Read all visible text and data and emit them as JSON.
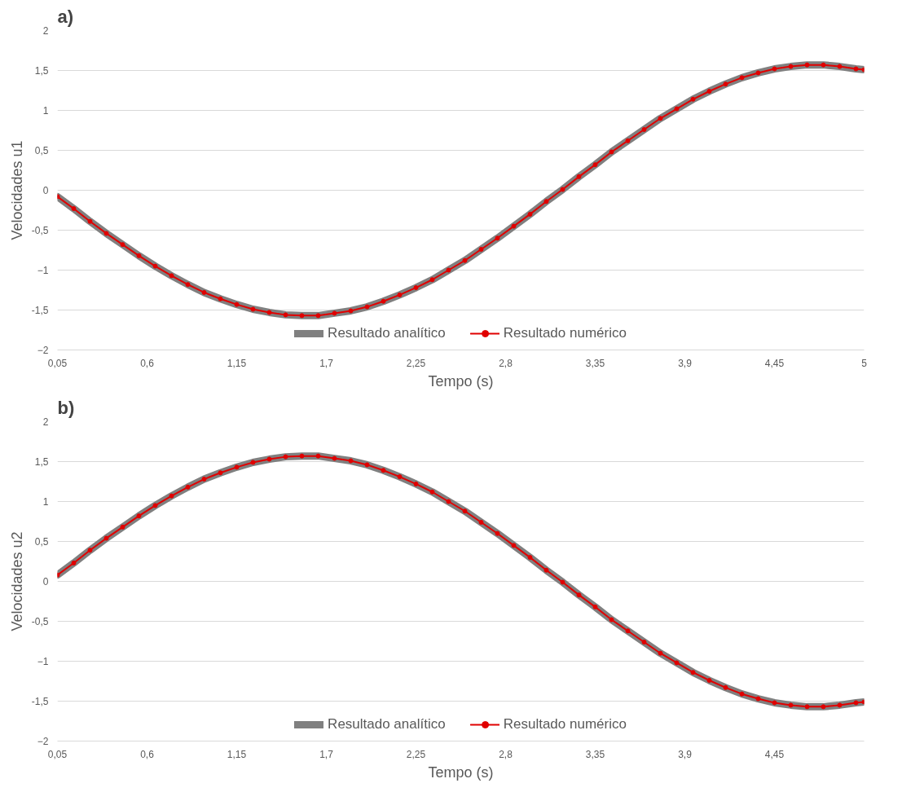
{
  "chart_data": [
    {
      "type": "line",
      "title": "a)",
      "xlabel": "Tempo (s)",
      "ylabel": "Velocidades u1",
      "grid": "y",
      "legend": "bottom",
      "xlim": [
        0.05,
        5
      ],
      "xticks": [
        {
          "value": 0.05,
          "label": "0,05"
        },
        {
          "value": 0.6,
          "label": "0,6"
        },
        {
          "value": 1.15,
          "label": "1,15"
        },
        {
          "value": 1.7,
          "label": "1,7"
        },
        {
          "value": 2.25,
          "label": "2,25"
        },
        {
          "value": 2.8,
          "label": "2,8"
        },
        {
          "value": 3.35,
          "label": "3,35"
        },
        {
          "value": 3.9,
          "label": "3,9"
        },
        {
          "value": 4.45,
          "label": "4,45"
        },
        5
      ],
      "ylim": [
        -2,
        2
      ],
      "yticks": [
        -2,
        {
          "value": -1.5,
          "label": "-1,5"
        },
        -1,
        {
          "value": -0.5,
          "label": "-0,5"
        },
        0,
        {
          "value": 0.5,
          "label": "0,5"
        },
        1,
        {
          "value": 1.5,
          "label": "1,5"
        },
        2
      ],
      "x": [
        0.05,
        0.15,
        0.25,
        0.35,
        0.45,
        0.55,
        0.65,
        0.75,
        0.85,
        0.95,
        1.05,
        1.15,
        1.25,
        1.35,
        1.45,
        1.55,
        1.65,
        1.75,
        1.85,
        1.95,
        2.05,
        2.15,
        2.25,
        2.35,
        2.45,
        2.55,
        2.65,
        2.75,
        2.85,
        2.95,
        3.05,
        3.15,
        3.25,
        3.35,
        3.45,
        3.55,
        3.65,
        3.75,
        3.85,
        3.95,
        4.05,
        4.15,
        4.25,
        4.35,
        4.45,
        4.55,
        4.65,
        4.75,
        4.85,
        4.95,
        5.0
      ],
      "series": [
        {
          "name": "Resultado analítico",
          "color": "#808080",
          "marker": "none",
          "values": [
            -0.08,
            -0.23,
            -0.39,
            -0.54,
            -0.68,
            -0.82,
            -0.95,
            -1.07,
            -1.18,
            -1.28,
            -1.36,
            -1.43,
            -1.49,
            -1.53,
            -1.56,
            -1.57,
            -1.57,
            -1.54,
            -1.51,
            -1.46,
            -1.39,
            -1.31,
            -1.22,
            -1.12,
            -1.0,
            -0.88,
            -0.74,
            -0.6,
            -0.45,
            -0.3,
            -0.14,
            0.01,
            0.17,
            0.32,
            0.48,
            0.62,
            0.76,
            0.9,
            1.02,
            1.14,
            1.24,
            1.33,
            1.41,
            1.47,
            1.52,
            1.55,
            1.57,
            1.57,
            1.55,
            1.52,
            1.51
          ]
        },
        {
          "name": "Resultado numérico",
          "color": "#e00000",
          "marker": "circle",
          "values": [
            -0.08,
            -0.23,
            -0.39,
            -0.54,
            -0.68,
            -0.82,
            -0.95,
            -1.07,
            -1.18,
            -1.28,
            -1.36,
            -1.43,
            -1.49,
            -1.53,
            -1.56,
            -1.57,
            -1.57,
            -1.54,
            -1.51,
            -1.46,
            -1.39,
            -1.31,
            -1.22,
            -1.12,
            -1.0,
            -0.88,
            -0.74,
            -0.6,
            -0.45,
            -0.3,
            -0.14,
            0.01,
            0.17,
            0.32,
            0.48,
            0.62,
            0.76,
            0.9,
            1.02,
            1.14,
            1.24,
            1.33,
            1.41,
            1.47,
            1.52,
            1.55,
            1.57,
            1.57,
            1.55,
            1.52,
            1.51
          ]
        }
      ]
    },
    {
      "type": "line",
      "title": "b)",
      "xlabel": "Tempo (s)",
      "ylabel": "Velocidades u2",
      "grid": "y",
      "legend": "bottom",
      "xlim": [
        0.05,
        5
      ],
      "xticks": [
        {
          "value": 0.05,
          "label": "0,05"
        },
        {
          "value": 0.6,
          "label": "0,6"
        },
        {
          "value": 1.15,
          "label": "1,15"
        },
        {
          "value": 1.7,
          "label": "1,7"
        },
        {
          "value": 2.25,
          "label": "2,25"
        },
        {
          "value": 2.8,
          "label": "2,8"
        },
        {
          "value": 3.35,
          "label": "3,35"
        },
        {
          "value": 3.9,
          "label": "3,9"
        },
        {
          "value": 4.45,
          "label": "4,45"
        }
      ],
      "ylim": [
        -2,
        2
      ],
      "yticks": [
        -2,
        {
          "value": -1.5,
          "label": "-1,5"
        },
        -1,
        {
          "value": -0.5,
          "label": "-0,5"
        },
        0,
        {
          "value": 0.5,
          "label": "0,5"
        },
        1,
        {
          "value": 1.5,
          "label": "1,5"
        },
        2
      ],
      "x": [
        0.05,
        0.15,
        0.25,
        0.35,
        0.45,
        0.55,
        0.65,
        0.75,
        0.85,
        0.95,
        1.05,
        1.15,
        1.25,
        1.35,
        1.45,
        1.55,
        1.65,
        1.75,
        1.85,
        1.95,
        2.05,
        2.15,
        2.25,
        2.35,
        2.45,
        2.55,
        2.65,
        2.75,
        2.85,
        2.95,
        3.05,
        3.15,
        3.25,
        3.35,
        3.45,
        3.55,
        3.65,
        3.75,
        3.85,
        3.95,
        4.05,
        4.15,
        4.25,
        4.35,
        4.45,
        4.55,
        4.65,
        4.75,
        4.85,
        4.95,
        5.0
      ],
      "series": [
        {
          "name": "Resultado analítico",
          "color": "#808080",
          "marker": "none",
          "values": [
            0.08,
            0.23,
            0.39,
            0.54,
            0.68,
            0.82,
            0.95,
            1.07,
            1.18,
            1.28,
            1.36,
            1.43,
            1.49,
            1.53,
            1.56,
            1.57,
            1.57,
            1.54,
            1.51,
            1.46,
            1.39,
            1.31,
            1.22,
            1.12,
            1.0,
            0.88,
            0.74,
            0.6,
            0.45,
            0.3,
            0.14,
            -0.01,
            -0.17,
            -0.32,
            -0.48,
            -0.62,
            -0.76,
            -0.9,
            -1.02,
            -1.14,
            -1.24,
            -1.33,
            -1.41,
            -1.47,
            -1.52,
            -1.55,
            -1.57,
            -1.57,
            -1.55,
            -1.52,
            -1.51
          ]
        },
        {
          "name": "Resultado numérico",
          "color": "#e00000",
          "marker": "circle",
          "values": [
            0.08,
            0.23,
            0.39,
            0.54,
            0.68,
            0.82,
            0.95,
            1.07,
            1.18,
            1.28,
            1.36,
            1.43,
            1.49,
            1.53,
            1.56,
            1.57,
            1.57,
            1.54,
            1.51,
            1.46,
            1.39,
            1.31,
            1.22,
            1.12,
            1.0,
            0.88,
            0.74,
            0.6,
            0.45,
            0.3,
            0.14,
            -0.01,
            -0.17,
            -0.32,
            -0.48,
            -0.62,
            -0.76,
            -0.9,
            -1.02,
            -1.14,
            -1.24,
            -1.33,
            -1.41,
            -1.47,
            -1.52,
            -1.55,
            -1.57,
            -1.57,
            -1.55,
            -1.52,
            -1.51
          ]
        }
      ]
    }
  ]
}
